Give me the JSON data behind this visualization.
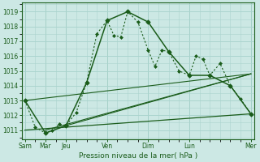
{
  "background_color": "#cce8e4",
  "grid_color": "#aad4ce",
  "line_color": "#1a5c1a",
  "xlabel": "Pression niveau de la mer( hPa )",
  "ylim": [
    1010.4,
    1019.6
  ],
  "yticks": [
    1011,
    1012,
    1013,
    1014,
    1015,
    1016,
    1017,
    1018,
    1019
  ],
  "xlim": [
    -0.15,
    11.15
  ],
  "x_day_ticks": [
    0,
    1,
    2,
    4,
    6,
    8,
    11
  ],
  "x_day_labels": [
    "Sam",
    "Mar",
    "Jeu",
    "Ven",
    "Dim",
    "Lun",
    "Mer"
  ],
  "x_vlines": [
    0,
    1,
    2,
    4,
    6,
    8,
    11
  ],
  "series_dotted": {
    "x": [
      0,
      0.5,
      1,
      1.33,
      1.67,
      2,
      2.5,
      3,
      3.5,
      4,
      4.33,
      4.67,
      5,
      5.5,
      6,
      6.33,
      6.67,
      7,
      7.5,
      8,
      8.33,
      8.67,
      9,
      9.5,
      10,
      10.5,
      11
    ],
    "y": [
      1013.0,
      1011.2,
      1010.8,
      1011.0,
      1011.4,
      1011.3,
      1012.2,
      1014.2,
      1017.5,
      1018.4,
      1017.4,
      1017.3,
      1019.0,
      1018.3,
      1016.4,
      1015.3,
      1016.4,
      1016.3,
      1015.0,
      1014.7,
      1016.0,
      1015.8,
      1014.7,
      1015.5,
      1014.0,
      1013.1,
      1012.1
    ]
  },
  "series_solid": {
    "x": [
      0,
      1,
      2,
      3,
      4,
      5,
      6,
      7,
      8,
      9,
      10,
      11
    ],
    "y": [
      1013.0,
      1010.8,
      1011.3,
      1014.2,
      1018.4,
      1019.0,
      1018.3,
      1016.3,
      1014.7,
      1014.7,
      1014.0,
      1012.1
    ]
  },
  "trend_lines": [
    {
      "x": [
        0,
        11
      ],
      "y": [
        1013.0,
        1014.8
      ]
    },
    {
      "x": [
        1,
        11
      ],
      "y": [
        1011.0,
        1014.8
      ]
    },
    {
      "x": [
        2,
        11
      ],
      "y": [
        1011.3,
        1014.8
      ]
    }
  ],
  "flat_line": {
    "x": [
      0,
      11
    ],
    "y": [
      1011.0,
      1012.1
    ]
  }
}
